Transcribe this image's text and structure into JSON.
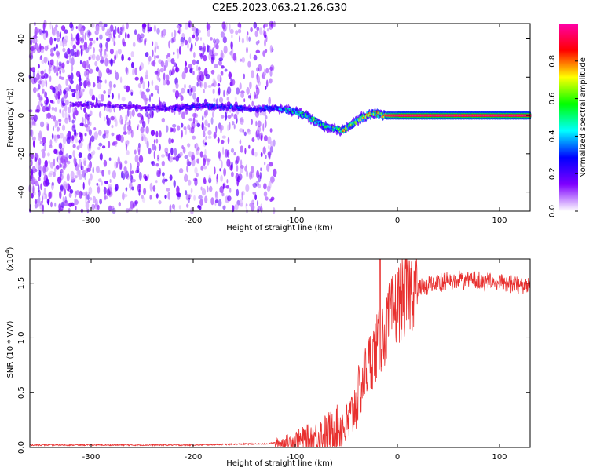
{
  "figure_title": "C2E5.2023.063.21.26.G30",
  "chart_data": [
    {
      "type": "heatmap",
      "name": "spectrogram",
      "xlabel": "Height of straight line (km)",
      "ylabel": "Frequency (Hz)",
      "xlim": [
        -360,
        130
      ],
      "ylim": [
        -50,
        48
      ],
      "x_ticks": [
        -300,
        -200,
        -100,
        0,
        100
      ],
      "y_ticks": [
        -40,
        -20,
        0,
        20,
        40
      ],
      "colorbar": {
        "label": "Normalized spectral amplitude",
        "range": [
          0.0,
          1.0
        ],
        "ticks": [
          0.0,
          0.2,
          0.4,
          0.6,
          0.8
        ],
        "tick_labels": [
          "0.0",
          "0.2",
          "0.4",
          "0.6",
          "0.8"
        ],
        "colormap": [
          "#ffffff",
          "#7f00ff",
          "#0000ff",
          "#00ffff",
          "#00ff00",
          "#ffff00",
          "#ff0000",
          "#ff00aa"
        ]
      },
      "signal_track": {
        "x": [
          -310,
          -280,
          -250,
          -220,
          -190,
          -160,
          -140,
          -120,
          -110,
          -100,
          -90,
          -80,
          -70,
          -60,
          -55,
          -50,
          -45,
          -40,
          -35,
          -30,
          -25,
          -20,
          -15,
          -10,
          0,
          50,
          100,
          130
        ],
        "freq": [
          6,
          5,
          4,
          4,
          5,
          4,
          3,
          4,
          3,
          2,
          0,
          -3,
          -6,
          -7,
          -8,
          -7,
          -5,
          -3,
          -1,
          0,
          1,
          1,
          0,
          0,
          0,
          0,
          0,
          0
        ],
        "amplitude": [
          0.2,
          0.2,
          0.2,
          0.25,
          0.3,
          0.35,
          0.3,
          0.4,
          0.5,
          0.5,
          0.6,
          0.65,
          0.55,
          0.6,
          0.75,
          0.85,
          0.8,
          0.7,
          0.75,
          0.8,
          0.85,
          0.9,
          0.92,
          0.95,
          1.0,
          1.0,
          1.0,
          1.0
        ]
      },
      "noise_region_x": [
        -360,
        -120
      ],
      "noise_dense_x": [
        -360,
        -300
      ],
      "noise_amplitude": 0.15
    },
    {
      "type": "line",
      "name": "snr",
      "xlabel": "Height of straight line (km)",
      "ylabel": "SNR (10 * V/V)",
      "multiplier_label": "(x10",
      "multiplier_exp": "4",
      "xlim": [
        -360,
        130
      ],
      "ylim": [
        0.0,
        1.72
      ],
      "x_ticks": [
        -300,
        -200,
        -100,
        0,
        100
      ],
      "y_ticks": [
        0.0,
        0.5,
        1.0,
        1.5
      ],
      "y_tick_labels": [
        "0.0",
        "0.5",
        "1.0",
        "1.5"
      ],
      "color": "#e8302f",
      "envelope": {
        "x": [
          -360,
          -300,
          -200,
          -150,
          -130,
          -120,
          -110,
          -100,
          -90,
          -80,
          -70,
          -60,
          -50,
          -45,
          -40,
          -35,
          -30,
          -25,
          -20,
          -15,
          -10,
          -5,
          0,
          10,
          20,
          30,
          40,
          60,
          80,
          100,
          130
        ],
        "y": [
          0.02,
          0.02,
          0.02,
          0.03,
          0.03,
          0.04,
          0.05,
          0.07,
          0.09,
          0.12,
          0.15,
          0.2,
          0.22,
          0.3,
          0.45,
          0.6,
          0.75,
          0.85,
          0.95,
          1.05,
          1.15,
          1.25,
          1.35,
          1.45,
          1.52,
          1.56,
          1.58,
          1.6,
          1.6,
          1.58,
          1.56
        ]
      }
    }
  ]
}
